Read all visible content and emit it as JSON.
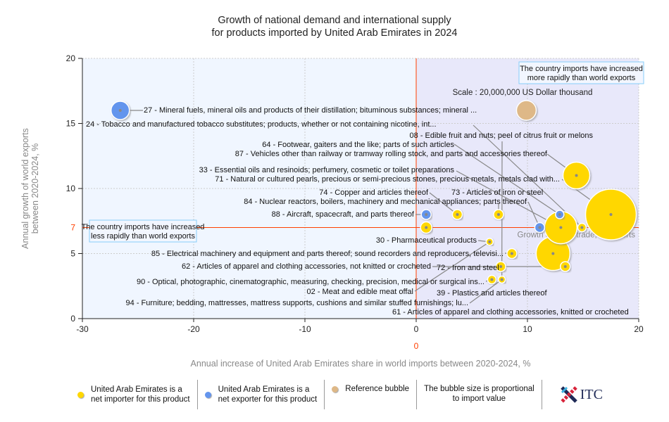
{
  "chart_data": {
    "type": "scatter",
    "subtype": "bubble",
    "title": [
      "Growth of national demand and international supply",
      "for products imported by United Arab Emirates in 2024"
    ],
    "xlabel": "Annual increase of United Arab Emirates share in world imports between 2020-2024, %",
    "ylabel": [
      "Annual growth of world exports",
      "between 2020-2024, %"
    ],
    "xlim": [
      -30,
      20
    ],
    "ylim": [
      0,
      20
    ],
    "xticks": [
      "-30",
      "-20",
      "-10",
      "0",
      "10",
      "20"
    ],
    "yticks": [
      "0",
      "5",
      "10",
      "15",
      "20"
    ],
    "x_reference": {
      "value": 0,
      "label": "0",
      "color": "#ff4000"
    },
    "y_reference": {
      "value": 7,
      "label": "7",
      "color": "#ff4000",
      "name": "Growth of world trade, % exports"
    },
    "scale_label": "Scale : 20,000,000 US Dollar thousand",
    "grid": true,
    "colors": {
      "importer": "#ffd700",
      "exporter": "#6495ed",
      "reference": "#deb887",
      "left_bg": "#f0f6ff",
      "right_bg": "#e8e8fa"
    },
    "bubbles": [
      {
        "x": -26.6,
        "y": 16.0,
        "size": 13,
        "type": "exporter"
      },
      {
        "x": 9.9,
        "y": 16.0,
        "size": 14,
        "type": "reference"
      },
      {
        "x": 14.4,
        "y": 11.0,
        "size": 19,
        "type": "importer"
      },
      {
        "x": 17.5,
        "y": 8.0,
        "size": 36,
        "type": "importer"
      },
      {
        "x": 0.9,
        "y": 8.0,
        "size": 7,
        "type": "exporter"
      },
      {
        "x": 3.7,
        "y": 8.0,
        "size": 7,
        "type": "importer"
      },
      {
        "x": 7.4,
        "y": 8.0,
        "size": 7,
        "type": "importer"
      },
      {
        "x": 12.9,
        "y": 8.0,
        "size": 6,
        "type": "exporter"
      },
      {
        "x": 11.1,
        "y": 7.0,
        "size": 7,
        "type": "exporter"
      },
      {
        "x": 13.0,
        "y": 7.0,
        "size": 23,
        "type": "importer"
      },
      {
        "x": 14.9,
        "y": 7.0,
        "size": 6,
        "type": "importer"
      },
      {
        "x": 0.9,
        "y": 7.0,
        "size": 8,
        "type": "importer"
      },
      {
        "x": 6.6,
        "y": 5.9,
        "size": 5,
        "type": "importer"
      },
      {
        "x": 12.3,
        "y": 5.0,
        "size": 24,
        "type": "importer"
      },
      {
        "x": 8.6,
        "y": 5.0,
        "size": 7,
        "type": "importer"
      },
      {
        "x": 7.6,
        "y": 4.0,
        "size": 7,
        "type": "importer"
      },
      {
        "x": 13.4,
        "y": 4.0,
        "size": 7,
        "type": "importer"
      },
      {
        "x": 6.8,
        "y": 3.0,
        "size": 6,
        "type": "importer"
      },
      {
        "x": 7.7,
        "y": 3.0,
        "size": 5,
        "type": "importer"
      }
    ],
    "labels": [
      {
        "text": "27 - Mineral fuels, mineral oils and products of their distillation; bituminous substances; mineral ...",
        "bubble": 0
      },
      {
        "text": "24 - Tobacco and manufactured tobacco substitutes; products, whether or not containing nicotine, int...",
        "bubble": 10
      },
      {
        "text": "08 - Edible fruit and nuts; peel of citrus fruit or melons",
        "bubble": 18
      },
      {
        "text": "64 - Footwear, gaiters and the like; parts of such articles",
        "bubble": 7
      },
      {
        "text": "87 - Vehicles other than railway or tramway rolling stock, and parts and accessories thereof",
        "bubble": 2
      },
      {
        "text": "33 - Essential oils and resinoids; perfumery, cosmetic or toilet preparations",
        "bubble": 9
      },
      {
        "text": "71 - Natural or cultured pearls, precious or semi-precious stones, precious metals, metals clad with...",
        "bubble": 3
      },
      {
        "text": "74 - Copper and articles thereof",
        "bubble": 5
      },
      {
        "text": "73 - Articles of iron or steel",
        "bubble": 6
      },
      {
        "text": "84 - Nuclear reactors, boilers, machinery and mechanical appliances; parts thereof",
        "bubble": 8
      },
      {
        "text": "88 - Aircraft, spacecraft, and parts thereof",
        "bubble": 4
      },
      {
        "text": "30 - Pharmaceutical products",
        "bubble": 12
      },
      {
        "text": "85 - Electrical machinery and equipment and parts thereof; sound recorders and reproducers, televisi...",
        "bubble": 14
      },
      {
        "text": "62 - Articles of apparel and clothing accessories, not knitted or crocheted",
        "bubble": 15
      },
      {
        "text": "72 - Iron and steel",
        "bubble": 16
      },
      {
        "text": "90 - Optical, photographic, cinematographic, measuring, checking, precision, medical or surgical ins...",
        "bubble": 17
      },
      {
        "text": "02 - Meat and edible meat offal",
        "bubble": 12
      },
      {
        "text": "94 - Furniture; bedding, mattresses, mattress supports, cushions and similar stuffed furnishings; lu...",
        "bubble": 18
      },
      {
        "text": "39 - Plastics and articles thereof",
        "bubble": 15
      },
      {
        "text": "61 - Articles of apparel and clothing accessories, knitted or crocheted",
        "bubble": 14
      }
    ],
    "quadrant_notes": {
      "left": [
        "The country imports have increased",
        "less rapidly than world exports"
      ],
      "right": [
        "The country imports have increased",
        "more rapidly than world exports"
      ]
    }
  },
  "legend": [
    {
      "text": "United Arab Emirates is a\nnet importer for this product",
      "color": "#ffd700"
    },
    {
      "text": "United Arab Emirates is a\nnet exporter for this product",
      "color": "#6495ed"
    },
    {
      "text": "Reference bubble",
      "color": "#deb887"
    },
    {
      "text": "The bubble size is proportional\nto import value"
    }
  ],
  "logo": {
    "text": "ITC"
  }
}
